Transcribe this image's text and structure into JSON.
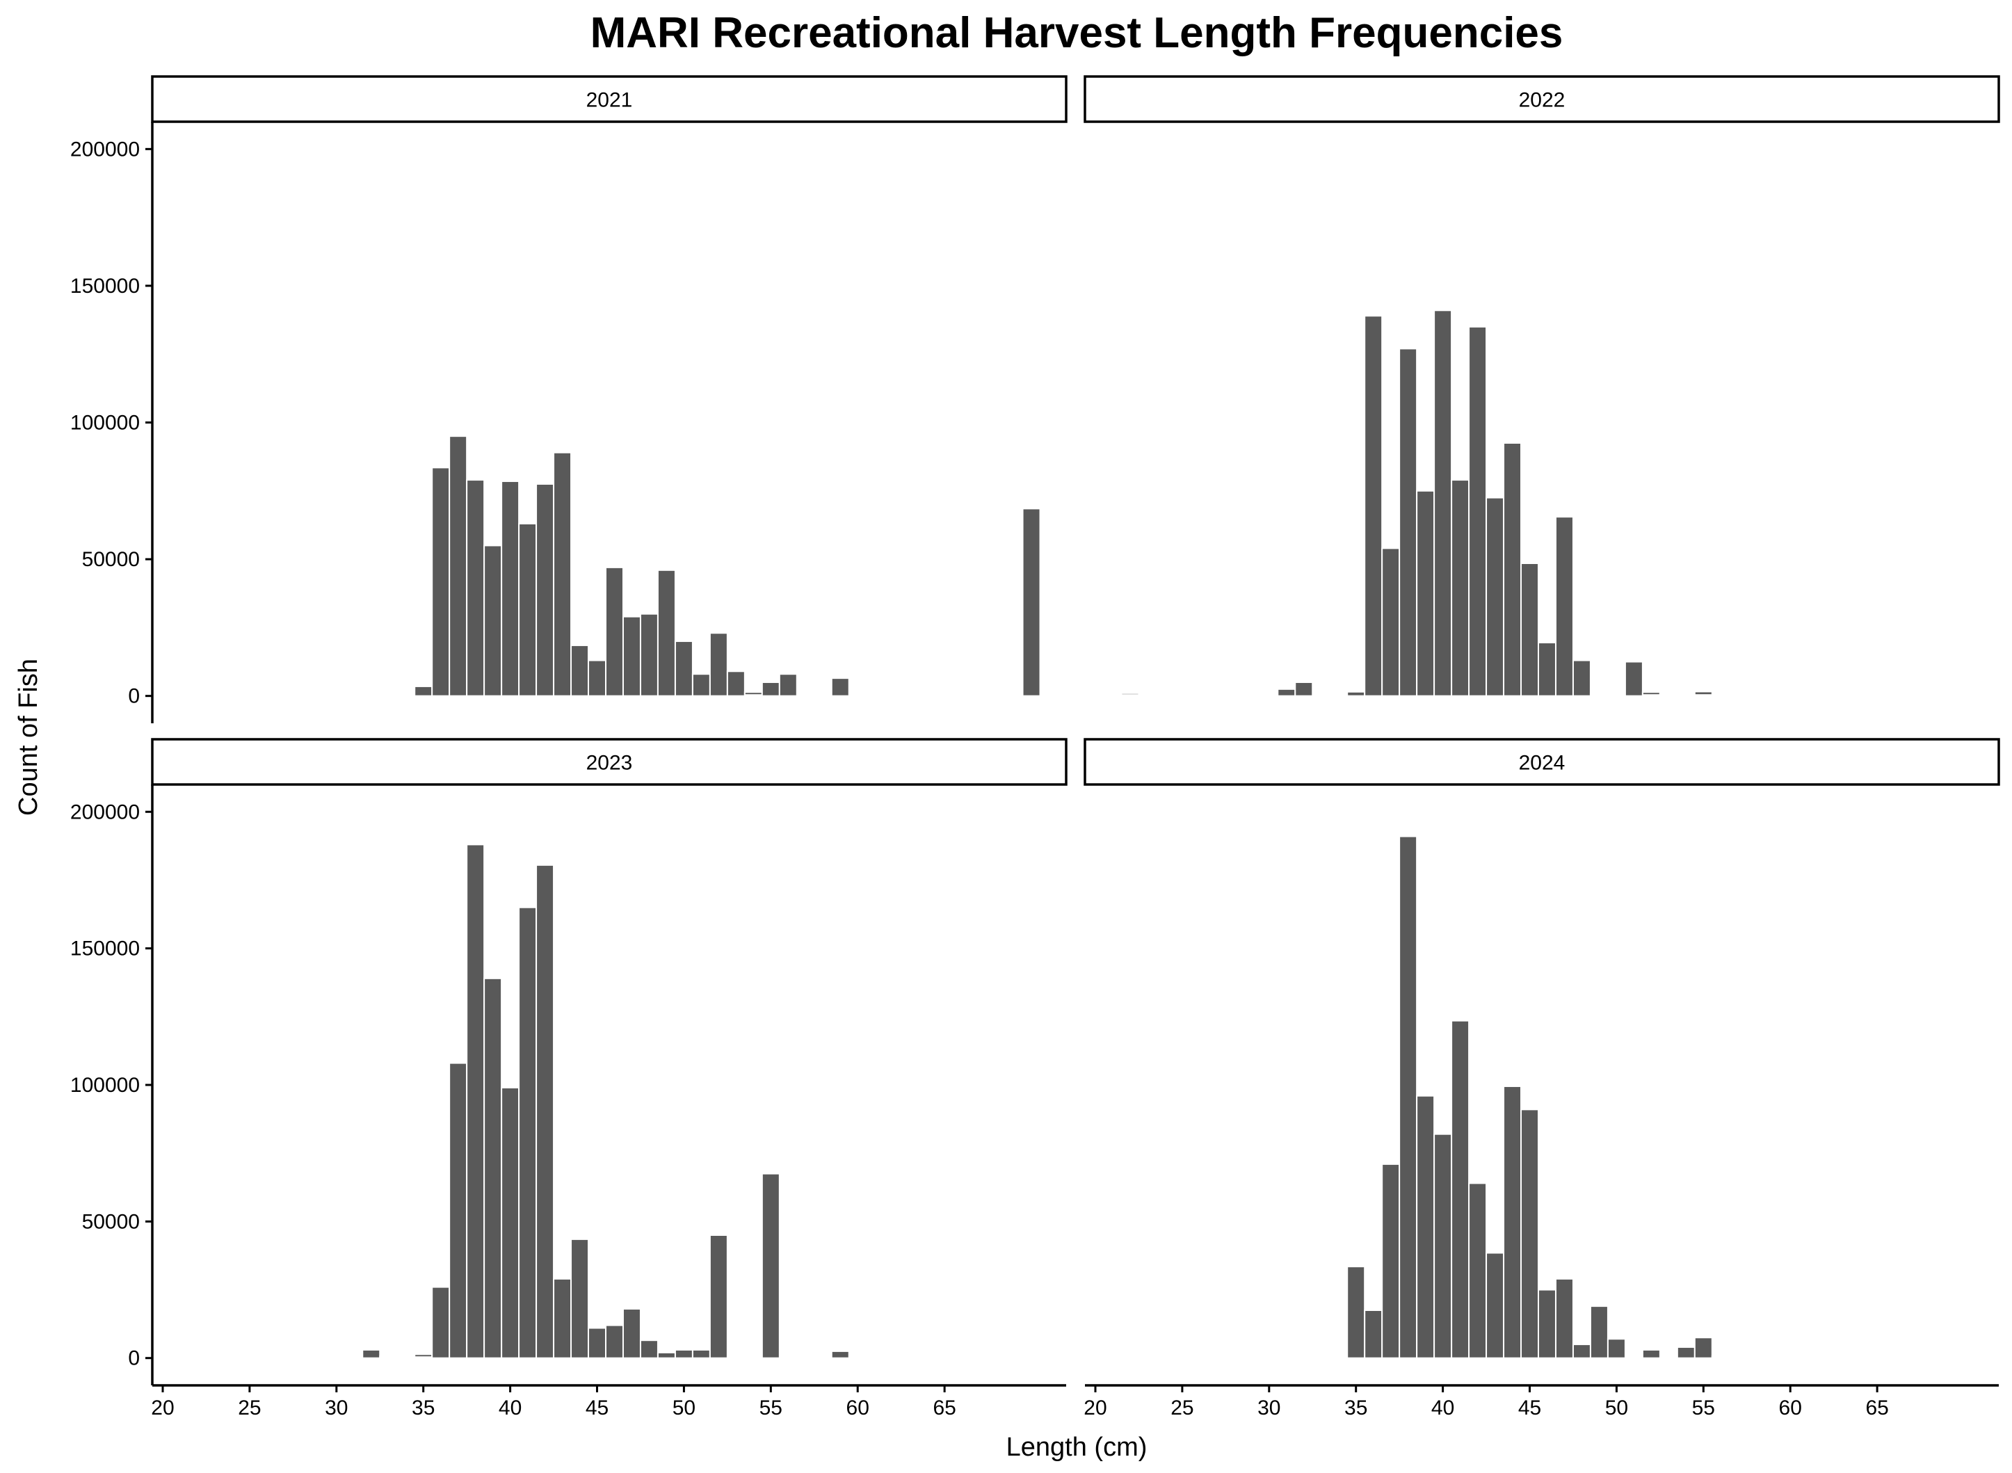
{
  "chart_data": {
    "type": "bar",
    "title": "MARI Recreational Harvest Length Frequencies",
    "xlabel": "Length (cm)",
    "ylabel": "Count of Fish",
    "xlim": [
      19.4,
      72
    ],
    "ylim": [
      -10000,
      210000
    ],
    "x_ticks": [
      20,
      25,
      30,
      35,
      40,
      45,
      50,
      55,
      60,
      65
    ],
    "y_ticks": [
      0,
      50000,
      100000,
      150000,
      200000
    ],
    "bar_color": "#595959",
    "facets": [
      {
        "label": "2021",
        "x": [
          22,
          35,
          36,
          37,
          38,
          39,
          40,
          41,
          42,
          43,
          44,
          45,
          46,
          47,
          48,
          49,
          50,
          51,
          52,
          53,
          54,
          55,
          56,
          59,
          65,
          66,
          70
        ],
        "y": [
          300,
          3500,
          83500,
          95000,
          79000,
          55000,
          78500,
          63000,
          77500,
          89000,
          18500,
          13000,
          47000,
          29000,
          30000,
          46000,
          20000,
          8000,
          23000,
          9000,
          1000,
          5000,
          8000,
          6500,
          300,
          300,
          68500
        ]
      },
      {
        "label": "2022",
        "x": [
          22,
          25,
          31,
          32,
          34,
          35,
          36,
          37,
          38,
          39,
          40,
          41,
          42,
          43,
          44,
          45,
          46,
          47,
          48,
          49,
          50,
          51,
          52,
          53,
          54,
          55,
          59
        ],
        "y": [
          600,
          300,
          2500,
          5000,
          400,
          1500,
          139000,
          54000,
          127000,
          75000,
          141000,
          79000,
          135000,
          72500,
          92500,
          48500,
          19500,
          65500,
          13000,
          500,
          300,
          12500,
          1000,
          500,
          500,
          1200,
          300
        ]
      },
      {
        "label": "2023",
        "x": [
          32,
          33,
          35,
          36,
          37,
          38,
          39,
          40,
          41,
          42,
          43,
          44,
          45,
          46,
          47,
          48,
          49,
          50,
          51,
          52,
          55,
          59
        ],
        "y": [
          3000,
          300,
          1000,
          26000,
          108000,
          188000,
          139000,
          99000,
          165000,
          180500,
          29000,
          43500,
          11000,
          12000,
          18000,
          6500,
          2000,
          3000,
          3000,
          45000,
          67500,
          2500
        ]
      },
      {
        "label": "2024",
        "x": [
          31,
          35,
          36,
          37,
          38,
          39,
          40,
          41,
          42,
          43,
          44,
          45,
          46,
          47,
          48,
          49,
          50,
          52,
          54,
          55,
          56,
          58,
          59
        ],
        "y": [
          300,
          33500,
          17500,
          71000,
          191000,
          96000,
          82000,
          123500,
          64000,
          38500,
          99500,
          91000,
          25000,
          29000,
          5000,
          19000,
          7000,
          3000,
          4000,
          7500,
          300,
          300,
          300
        ]
      }
    ]
  }
}
